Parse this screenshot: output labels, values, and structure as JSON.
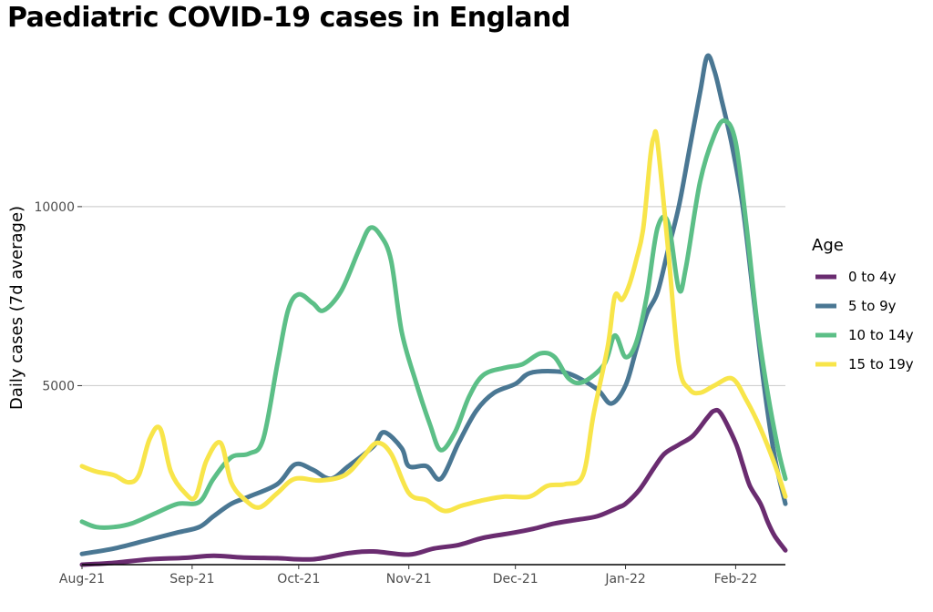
{
  "chart_data": {
    "type": "line",
    "title": "Paediatric COVID-19 cases in England",
    "xlabel": "",
    "ylabel": "Daily cases (7d average)",
    "x_ticks": [
      "Aug-21",
      "Sep-21",
      "Oct-21",
      "Nov-21",
      "Dec-21",
      "Jan-22",
      "Feb-22"
    ],
    "x_tick_dates": [
      "2021-08-01",
      "2021-09-01",
      "2021-10-01",
      "2021-11-01",
      "2021-12-01",
      "2022-01-01",
      "2022-02-01"
    ],
    "xlim": [
      "2021-08-01",
      "2022-02-15"
    ],
    "y_ticks": [
      5000,
      10000
    ],
    "ylim": [
      0,
      14500
    ],
    "grid": {
      "horizontal": true,
      "vertical": false
    },
    "legend": {
      "title": "Age",
      "position": "right"
    },
    "series": [
      {
        "name": "0 to 4y",
        "color": "#6a2c70",
        "points": [
          [
            "2021-08-01",
            0
          ],
          [
            "2021-08-10",
            50
          ],
          [
            "2021-08-20",
            150
          ],
          [
            "2021-08-30",
            190
          ],
          [
            "2021-09-07",
            250
          ],
          [
            "2021-09-15",
            200
          ],
          [
            "2021-09-25",
            180
          ],
          [
            "2021-10-05",
            150
          ],
          [
            "2021-10-15",
            320
          ],
          [
            "2021-10-22",
            370
          ],
          [
            "2021-11-01",
            280
          ],
          [
            "2021-11-08",
            450
          ],
          [
            "2021-11-15",
            550
          ],
          [
            "2021-11-22",
            750
          ],
          [
            "2021-12-01",
            900
          ],
          [
            "2021-12-06",
            1000
          ],
          [
            "2021-12-12",
            1150
          ],
          [
            "2021-12-18",
            1250
          ],
          [
            "2021-12-24",
            1350
          ],
          [
            "2021-12-30",
            1600
          ],
          [
            "2022-01-01",
            1700
          ],
          [
            "2022-01-05",
            2100
          ],
          [
            "2022-01-09",
            2700
          ],
          [
            "2022-01-12",
            3100
          ],
          [
            "2022-01-16",
            3350
          ],
          [
            "2022-01-20",
            3600
          ],
          [
            "2022-01-24",
            4100
          ],
          [
            "2022-01-26",
            4300
          ],
          [
            "2022-01-28",
            4200
          ],
          [
            "2022-02-01",
            3400
          ],
          [
            "2022-02-03",
            2800
          ],
          [
            "2022-02-05",
            2200
          ],
          [
            "2022-02-08",
            1700
          ],
          [
            "2022-02-10",
            1200
          ],
          [
            "2022-02-12",
            800
          ],
          [
            "2022-02-15",
            400
          ]
        ]
      },
      {
        "name": "5 to 9y",
        "color": "#4a7793",
        "points": [
          [
            "2021-08-01",
            300
          ],
          [
            "2021-08-10",
            450
          ],
          [
            "2021-08-20",
            700
          ],
          [
            "2021-08-28",
            900
          ],
          [
            "2021-09-03",
            1050
          ],
          [
            "2021-09-07",
            1350
          ],
          [
            "2021-09-12",
            1700
          ],
          [
            "2021-09-17",
            1900
          ],
          [
            "2021-09-25",
            2250
          ],
          [
            "2021-09-30",
            2800
          ],
          [
            "2021-10-05",
            2650
          ],
          [
            "2021-10-10",
            2400
          ],
          [
            "2021-10-15",
            2750
          ],
          [
            "2021-10-22",
            3300
          ],
          [
            "2021-10-25",
            3700
          ],
          [
            "2021-10-30",
            3250
          ],
          [
            "2021-11-01",
            2750
          ],
          [
            "2021-11-06",
            2750
          ],
          [
            "2021-11-10",
            2400
          ],
          [
            "2021-11-15",
            3400
          ],
          [
            "2021-11-20",
            4300
          ],
          [
            "2021-11-25",
            4800
          ],
          [
            "2021-12-01",
            5050
          ],
          [
            "2021-12-05",
            5350
          ],
          [
            "2021-12-12",
            5400
          ],
          [
            "2021-12-17",
            5300
          ],
          [
            "2021-12-24",
            4900
          ],
          [
            "2021-12-28",
            4500
          ],
          [
            "2022-01-01",
            5000
          ],
          [
            "2022-01-04",
            6000
          ],
          [
            "2022-01-07",
            7000
          ],
          [
            "2022-01-10",
            7600
          ],
          [
            "2022-01-13",
            8800
          ],
          [
            "2022-01-16",
            10000
          ],
          [
            "2022-01-19",
            11600
          ],
          [
            "2022-01-22",
            13200
          ],
          [
            "2022-01-24",
            14200
          ],
          [
            "2022-01-26",
            13800
          ],
          [
            "2022-01-28",
            13000
          ],
          [
            "2022-01-31",
            11700
          ],
          [
            "2022-02-03",
            10000
          ],
          [
            "2022-02-06",
            7500
          ],
          [
            "2022-02-09",
            5000
          ],
          [
            "2022-02-12",
            3000
          ],
          [
            "2022-02-15",
            1700
          ]
        ]
      },
      {
        "name": "10 to 14y",
        "color": "#5cbf87",
        "points": [
          [
            "2021-08-01",
            1200
          ],
          [
            "2021-08-05",
            1050
          ],
          [
            "2021-08-10",
            1050
          ],
          [
            "2021-08-15",
            1150
          ],
          [
            "2021-08-22",
            1450
          ],
          [
            "2021-08-28",
            1700
          ],
          [
            "2021-09-03",
            1750
          ],
          [
            "2021-09-07",
            2400
          ],
          [
            "2021-09-12",
            3000
          ],
          [
            "2021-09-17",
            3100
          ],
          [
            "2021-09-21",
            3500
          ],
          [
            "2021-09-25",
            5600
          ],
          [
            "2021-09-28",
            7100
          ],
          [
            "2021-10-01",
            7550
          ],
          [
            "2021-10-05",
            7300
          ],
          [
            "2021-10-08",
            7100
          ],
          [
            "2021-10-13",
            7650
          ],
          [
            "2021-10-18",
            8800
          ],
          [
            "2021-10-21",
            9400
          ],
          [
            "2021-10-24",
            9200
          ],
          [
            "2021-10-27",
            8500
          ],
          [
            "2021-10-30",
            6500
          ],
          [
            "2021-11-03",
            5100
          ],
          [
            "2021-11-07",
            3900
          ],
          [
            "2021-11-10",
            3200
          ],
          [
            "2021-11-14",
            3700
          ],
          [
            "2021-11-18",
            4700
          ],
          [
            "2021-11-22",
            5300
          ],
          [
            "2021-11-28",
            5500
          ],
          [
            "2021-12-03",
            5600
          ],
          [
            "2021-12-08",
            5900
          ],
          [
            "2021-12-12",
            5800
          ],
          [
            "2021-12-16",
            5200
          ],
          [
            "2021-12-20",
            5100
          ],
          [
            "2021-12-26",
            5600
          ],
          [
            "2021-12-29",
            6400
          ],
          [
            "2022-01-01",
            5800
          ],
          [
            "2022-01-04",
            6200
          ],
          [
            "2022-01-07",
            7500
          ],
          [
            "2022-01-10",
            9400
          ],
          [
            "2022-01-13",
            9550
          ],
          [
            "2022-01-16",
            7700
          ],
          [
            "2022-01-18",
            8300
          ],
          [
            "2022-01-22",
            10700
          ],
          [
            "2022-01-26",
            12000
          ],
          [
            "2022-01-29",
            12400
          ],
          [
            "2022-02-01",
            11800
          ],
          [
            "2022-02-04",
            9500
          ],
          [
            "2022-02-07",
            6800
          ],
          [
            "2022-02-10",
            4800
          ],
          [
            "2022-02-13",
            3200
          ],
          [
            "2022-02-15",
            2400
          ]
        ]
      },
      {
        "name": "15 to 19y",
        "color": "#f8e54a",
        "points": [
          [
            "2021-08-01",
            2750
          ],
          [
            "2021-08-05",
            2600
          ],
          [
            "2021-08-10",
            2500
          ],
          [
            "2021-08-14",
            2300
          ],
          [
            "2021-08-17",
            2500
          ],
          [
            "2021-08-20",
            3500
          ],
          [
            "2021-08-23",
            3800
          ],
          [
            "2021-08-26",
            2600
          ],
          [
            "2021-08-30",
            2000
          ],
          [
            "2021-09-02",
            1900
          ],
          [
            "2021-09-05",
            2900
          ],
          [
            "2021-09-09",
            3400
          ],
          [
            "2021-09-12",
            2300
          ],
          [
            "2021-09-16",
            1800
          ],
          [
            "2021-09-20",
            1600
          ],
          [
            "2021-09-25",
            2000
          ],
          [
            "2021-09-30",
            2400
          ],
          [
            "2021-10-07",
            2350
          ],
          [
            "2021-10-14",
            2500
          ],
          [
            "2021-10-19",
            3000
          ],
          [
            "2021-10-23",
            3400
          ],
          [
            "2021-10-27",
            3100
          ],
          [
            "2021-11-01",
            2000
          ],
          [
            "2021-11-06",
            1800
          ],
          [
            "2021-11-11",
            1500
          ],
          [
            "2021-11-16",
            1650
          ],
          [
            "2021-11-22",
            1800
          ],
          [
            "2021-11-28",
            1900
          ],
          [
            "2021-12-05",
            1900
          ],
          [
            "2021-12-10",
            2200
          ],
          [
            "2021-12-15",
            2250
          ],
          [
            "2021-12-20",
            2500
          ],
          [
            "2021-12-23",
            4200
          ],
          [
            "2021-12-27",
            6100
          ],
          [
            "2021-12-29",
            7500
          ],
          [
            "2021-12-31",
            7400
          ],
          [
            "2022-01-02",
            7800
          ],
          [
            "2022-01-04",
            8500
          ],
          [
            "2022-01-06",
            9400
          ],
          [
            "2022-01-08",
            11400
          ],
          [
            "2022-01-09",
            11950
          ],
          [
            "2022-01-10",
            11800
          ],
          [
            "2022-01-13",
            8800
          ],
          [
            "2022-01-16",
            5600
          ],
          [
            "2022-01-19",
            4900
          ],
          [
            "2022-01-22",
            4800
          ],
          [
            "2022-01-26",
            5000
          ],
          [
            "2022-01-31",
            5200
          ],
          [
            "2022-02-04",
            4600
          ],
          [
            "2022-02-08",
            3800
          ],
          [
            "2022-02-12",
            2800
          ],
          [
            "2022-02-15",
            1900
          ]
        ]
      }
    ]
  }
}
